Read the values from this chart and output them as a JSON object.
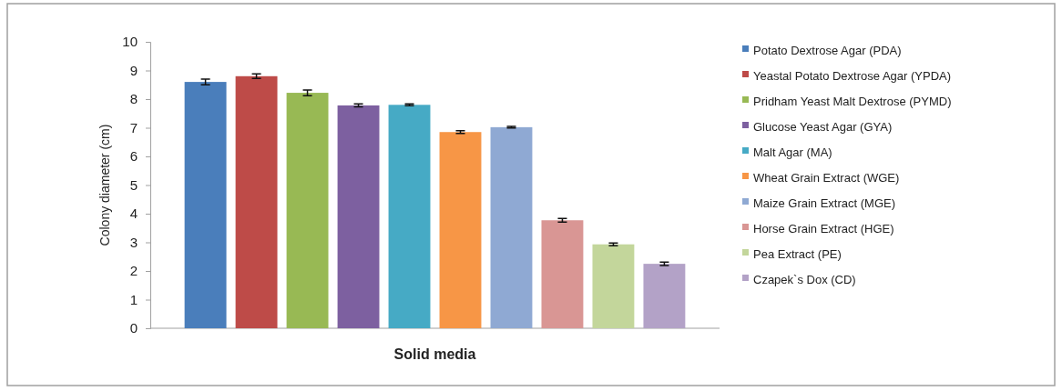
{
  "chart_data": {
    "type": "bar",
    "xlabel": "Solid media",
    "ylabel": "Colony diameter (cm)",
    "categories": [
      null
    ],
    "ylim": [
      0,
      10
    ],
    "yticks": [
      0,
      1,
      2,
      3,
      4,
      5,
      6,
      7,
      8,
      9,
      10
    ],
    "legend": "right",
    "grid": false,
    "series": [
      {
        "name": "Potato Dextrose Agar (PDA)",
        "color": "#4a7ebb",
        "values": [
          8.6
        ],
        "errors": [
          0.1
        ]
      },
      {
        "name": "Yeastal Potato Dextrose Agar (YPDA)",
        "color": "#be4b48",
        "values": [
          8.8
        ],
        "errors": [
          0.08
        ]
      },
      {
        "name": "Pridham Yeast Malt Dextrose (PYMD)",
        "color": "#98b954",
        "values": [
          8.22
        ],
        "errors": [
          0.1
        ]
      },
      {
        "name": "Glucose Yeast Agar (GYA)",
        "color": "#7d60a0",
        "values": [
          7.78
        ],
        "errors": [
          0.05
        ]
      },
      {
        "name": "Malt Agar (MA)",
        "color": "#46aac5",
        "values": [
          7.8
        ],
        "errors": [
          0.03
        ]
      },
      {
        "name": "Wheat Grain Extract (WGE)",
        "color": "#f79646",
        "values": [
          6.85
        ],
        "errors": [
          0.05
        ]
      },
      {
        "name": "Maize Grain Extract (MGE)",
        "color": "#8fa9d3",
        "values": [
          7.02
        ],
        "errors": [
          0.03
        ]
      },
      {
        "name": "Horse Grain Extract (HGE)",
        "color": "#d99694",
        "values": [
          3.77
        ],
        "errors": [
          0.06
        ]
      },
      {
        "name": "Pea Extract (PE)",
        "color": "#c3d69b",
        "values": [
          2.93
        ],
        "errors": [
          0.05
        ]
      },
      {
        "name": "Czapek`s Dox (CD)",
        "color": "#b3a2c7",
        "values": [
          2.25
        ],
        "errors": [
          0.06
        ]
      }
    ]
  }
}
